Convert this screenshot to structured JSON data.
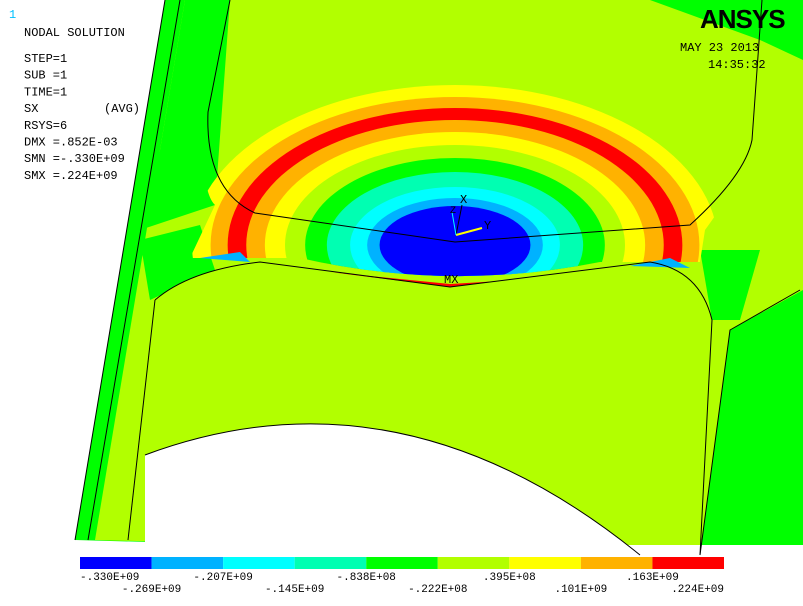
{
  "window_number": "1",
  "title": "NODAL SOLUTION",
  "info": [
    "STEP=1",
    "SUB =1",
    "TIME=1",
    "SX",
    "RSYS=6",
    "DMX =.852E-03",
    "SMN =-.330E+09",
    "SMX =.224E+09"
  ],
  "info_qualifier": "(AVG)",
  "logo": "ANSYS",
  "date": "MAY 23 2013",
  "time": "14:35:32",
  "markers": {
    "max": "MX",
    "axis_x": "X",
    "axis_y": "Y",
    "axis_z": "Z"
  },
  "legend": {
    "colors": [
      "#0000ff",
      "#00b2ff",
      "#00ffff",
      "#00ffb2",
      "#00ff00",
      "#b2ff00",
      "#ffff00",
      "#ffb200",
      "#ff0000"
    ],
    "labels": [
      "-.330E+09",
      "-.269E+09",
      "-.207E+09",
      "-.145E+09",
      "-.838E+08",
      "-.222E+08",
      ".395E+08",
      ".101E+09",
      ".163E+09",
      ".224E+09"
    ]
  }
}
